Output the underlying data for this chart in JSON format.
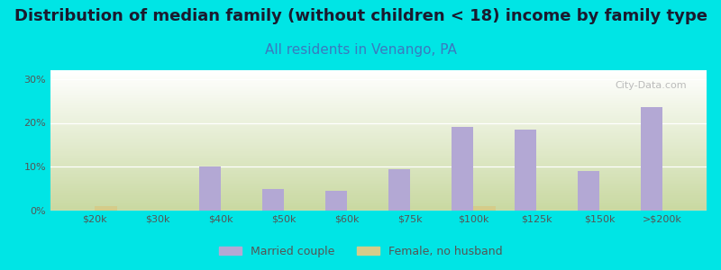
{
  "title": "Distribution of median family (without children < 18) income by family type",
  "subtitle": "All residents in Venango, PA",
  "categories": [
    "$20k",
    "$30k",
    "$40k",
    "$50k",
    "$60k",
    "$75k",
    "$100k",
    "$125k",
    "$150k",
    ">$200k"
  ],
  "married_couple": [
    0,
    0,
    10,
    5,
    4.5,
    9.5,
    19,
    18.5,
    9,
    23.5
  ],
  "female_no_husband": [
    1,
    0,
    0,
    0,
    0,
    0,
    1,
    0,
    0,
    0
  ],
  "bar_width": 0.35,
  "married_color": "#b3a8d4",
  "female_color": "#d4cc8a",
  "bg_outer": "#00e5e5",
  "bg_chart_top": "#ffffff",
  "bg_chart_bottom": "#c8d8a0",
  "title_color": "#1a1a2e",
  "subtitle_color": "#3a7abf",
  "tick_label_color": "#555555",
  "ylim": [
    0,
    32
  ],
  "yticks": [
    0,
    10,
    20,
    30
  ],
  "ytick_labels": [
    "0%",
    "10%",
    "20%",
    "30%"
  ],
  "watermark": "City-Data.com",
  "title_fontsize": 13,
  "subtitle_fontsize": 11
}
